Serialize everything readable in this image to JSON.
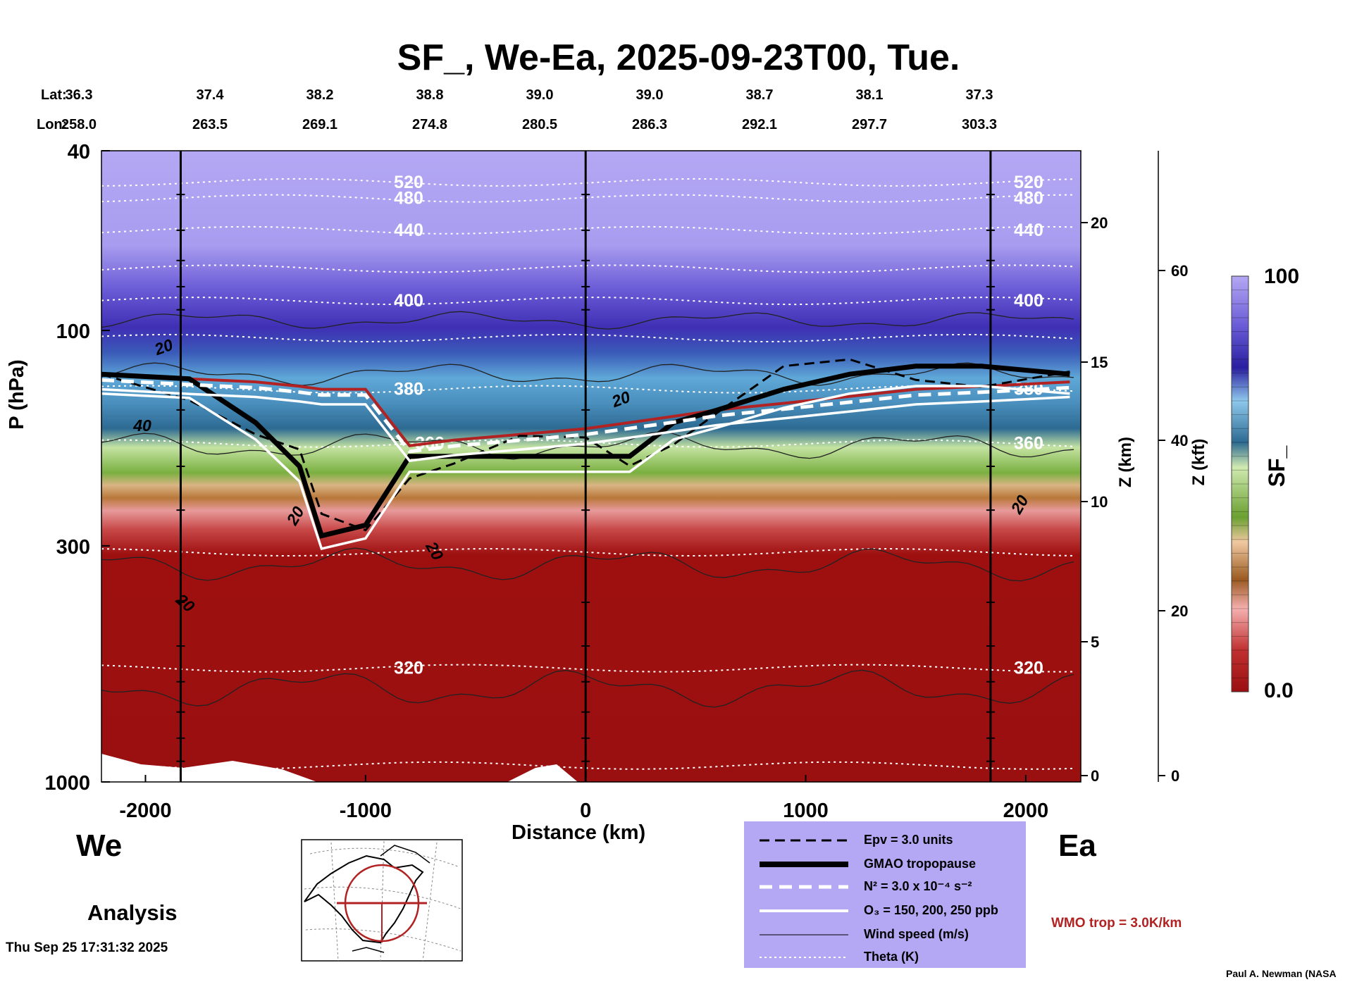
{
  "title": "SF_, We-Ea, 2025-09-23T00, Tue.",
  "header": {
    "lat_label": "Lat:",
    "lon_label": "Lon:",
    "lat": [
      "36.3",
      "37.4",
      "38.2",
      "38.8",
      "39.0",
      "39.0",
      "38.7",
      "38.1",
      "37.3"
    ],
    "lon": [
      "258.0",
      "263.5",
      "269.1",
      "274.8",
      "280.5",
      "286.3",
      "292.1",
      "297.7",
      "303.3"
    ]
  },
  "left_end": "We",
  "right_end": "Ea",
  "mode": "Analysis",
  "timestamp": "Thu Sep 25 17:31:32 2025",
  "credit": "Paul A. Newman (NASA",
  "wmo_note": "WMO trop = 3.0K/km",
  "colors": {
    "wmo_trop": "#b22222",
    "legend_bg": "#b4a8f4",
    "scale_top": "#6a5bd6",
    "scale_low": "#9e1010"
  },
  "legend": [
    {
      "key": "epv",
      "label": "Epv = 3.0 units"
    },
    {
      "key": "gmao",
      "label": "GMAO tropopause"
    },
    {
      "key": "n2",
      "label": "N² = 3.0 x 10⁻⁴ s⁻²"
    },
    {
      "key": "o3",
      "label": "O₃ = 150, 200, 250 ppb"
    },
    {
      "key": "wind",
      "label": "Wind speed (m/s)"
    },
    {
      "key": "theta",
      "label": "Theta (K)"
    }
  ],
  "colorbar": {
    "label": "SF_",
    "max_label": "100",
    "min_label": "0.0"
  },
  "chart_data": {
    "type": "heatmap",
    "title": "SF_, We-Ea, 2025-09-23T00, Tue.",
    "xlabel": "Distance (km)",
    "ylabel": "P (hPa)",
    "y2label": "Z (km)",
    "y3label": "Z (kft)",
    "xlim": [
      -2200,
      2250
    ],
    "ylim": [
      1000,
      40
    ],
    "y_scale": "log",
    "x_ticks": [
      "-2000",
      "-1000",
      "0",
      "1000",
      "2000"
    ],
    "y_ticks": [
      "40",
      "100",
      "300",
      "1000"
    ],
    "z_km_ticks": [
      "0",
      "5",
      "10",
      "15",
      "20"
    ],
    "z_kft_ticks": [
      "0",
      "20",
      "40",
      "60"
    ],
    "color_range": [
      0.0,
      100
    ],
    "theta_labels": [
      "520",
      "480",
      "440",
      "400",
      "380",
      "360",
      "320"
    ],
    "wind_labels": [
      "20",
      "40",
      "20",
      "20",
      "20",
      "20",
      "20"
    ],
    "tropopause_pressure_hpa": {
      "distance_km": [
        -2200,
        -1800,
        -1500,
        -1300,
        -1200,
        -1000,
        -800,
        -600,
        -300,
        0,
        200,
        400,
        600,
        900,
        1200,
        1500,
        1800,
        2200
      ],
      "gmao": [
        125,
        128,
        160,
        200,
        285,
        270,
        190,
        190,
        190,
        190,
        190,
        160,
        150,
        135,
        125,
        120,
        120,
        125
      ],
      "wmo": [
        125,
        128,
        130,
        133,
        135,
        135,
        180,
        175,
        170,
        165,
        160,
        155,
        150,
        145,
        140,
        135,
        133,
        130
      ]
    },
    "sf_layers": [
      {
        "p_top": 40,
        "p_bottom": 85,
        "sf_range": "90-100"
      },
      {
        "p_top": 85,
        "p_bottom": 125,
        "sf_range": "70-90"
      },
      {
        "p_top": 125,
        "p_bottom": 190,
        "sf_range": "40-70"
      },
      {
        "p_top": 190,
        "p_bottom": 260,
        "sf_range": "15-40"
      },
      {
        "p_top": 260,
        "p_bottom": 1000,
        "sf_range": "0-15"
      }
    ]
  }
}
